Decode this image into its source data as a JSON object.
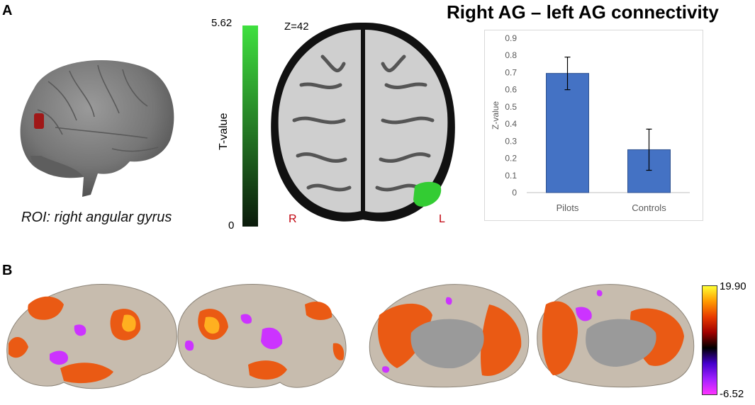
{
  "panels": {
    "a_label": "A",
    "b_label": "B"
  },
  "roi": {
    "caption": "ROI: right angular gyrus"
  },
  "tvalue_scale": {
    "label": "T-value",
    "max_label": "5.62",
    "min_label": "0",
    "colors": {
      "high": "#3fe03f",
      "low": "#0b1a0b"
    }
  },
  "axial_slice": {
    "slice_label": "Z=42",
    "right_label": "R",
    "left_label": "L",
    "cluster_color": "#33cc33"
  },
  "chart_data": {
    "type": "bar",
    "title": "Right AG – left AG connectivity",
    "xlabel": "",
    "ylabel": "Z-value",
    "categories": [
      "Pilots",
      "Controls"
    ],
    "values": [
      0.695,
      0.25
    ],
    "error": [
      0.095,
      0.12
    ],
    "ylim": [
      0,
      0.9
    ],
    "yticks": [
      "0",
      "0.1",
      "0.2",
      "0.3",
      "0.4",
      "0.5",
      "0.6",
      "0.7",
      "0.8",
      "0.9"
    ],
    "grid": false,
    "bar_color": "#4472c4"
  },
  "surface_scale": {
    "max_label": "19.90",
    "min_label": "-6.52",
    "colors": [
      "#ffff33",
      "#ff9900",
      "#e83a00",
      "#a00000",
      "#000000",
      "#4400cc",
      "#a020ff",
      "#ff33ff"
    ]
  },
  "surface_colors": {
    "cortex": "#c7bcae",
    "positive": "#ea5a14",
    "negative": "#cc33ff",
    "peak": "#ffb020",
    "medial_wall": "#9a9a9a"
  }
}
